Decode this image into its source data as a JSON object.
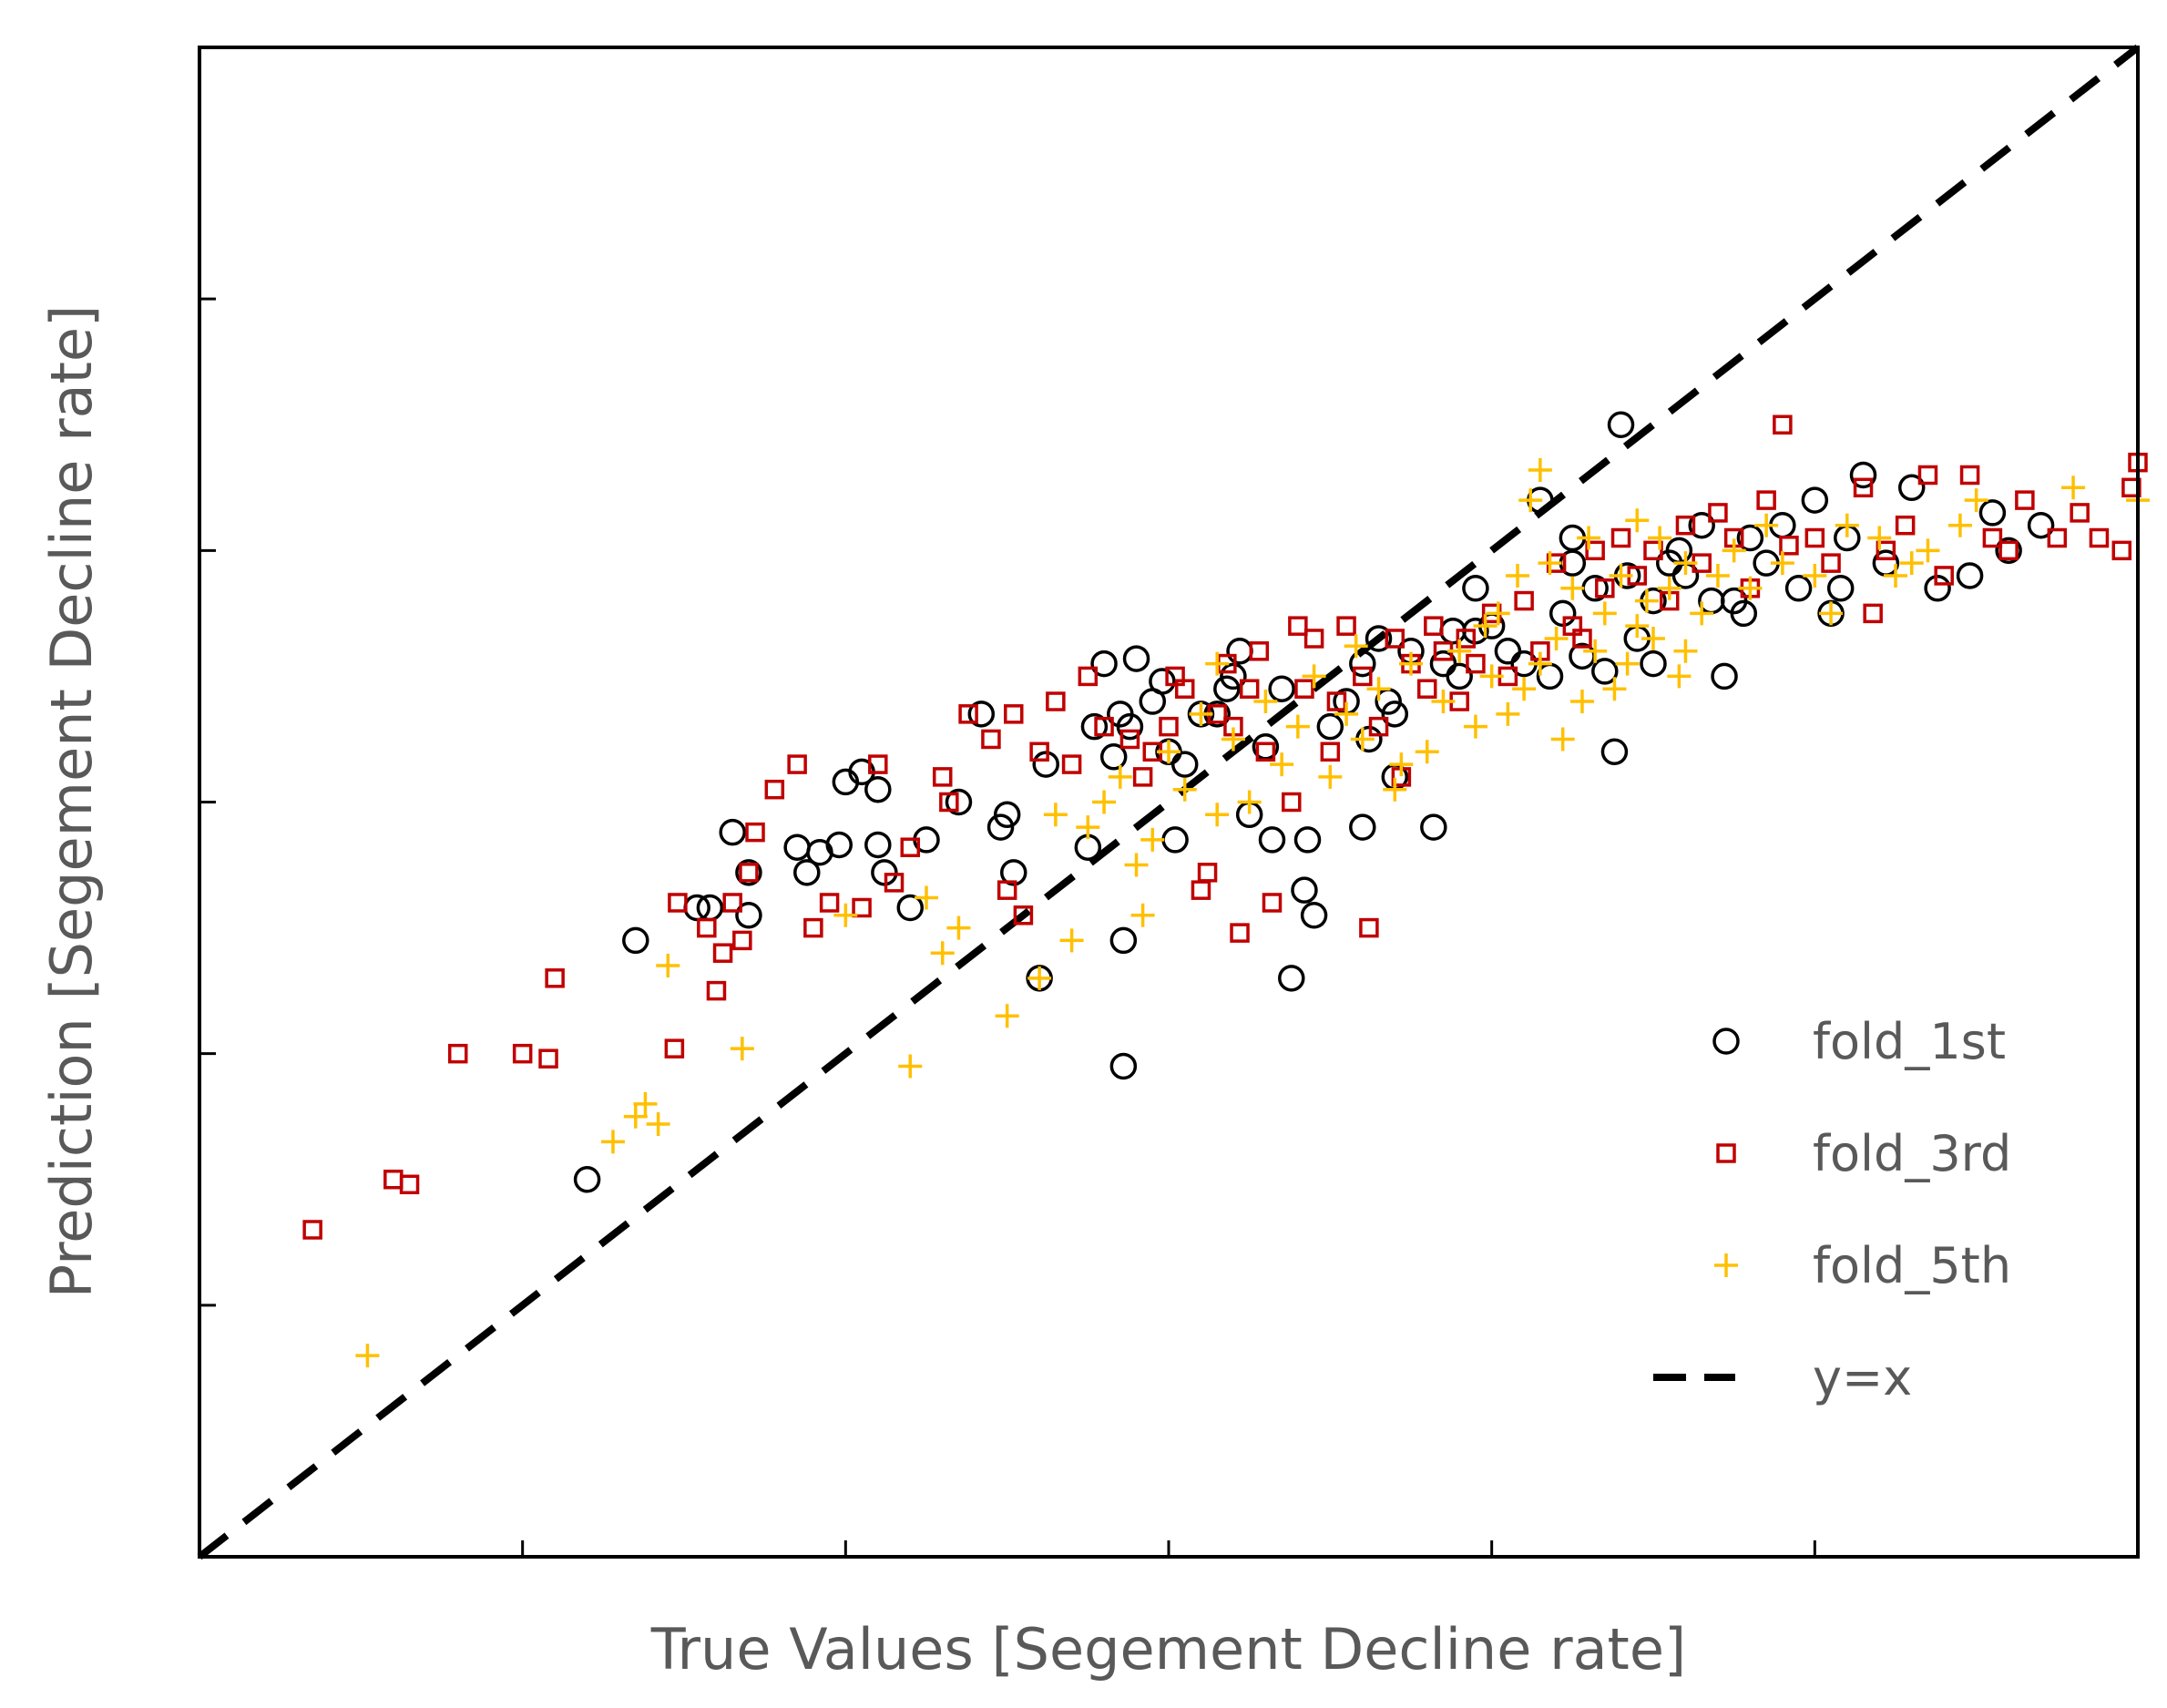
{
  "chart_data": {
    "type": "scatter",
    "xlabel": "True Values [Segement Decline rate]",
    "ylabel": "Prediction [Segement Decline rate]",
    "xlim": [
      0,
      6
    ],
    "ylim": [
      0,
      6
    ],
    "tick_labels_shown": false,
    "grid": false,
    "legend_position": "bottom-right",
    "reference_line": {
      "label": "y=x",
      "style": "dashed",
      "color": "#000000"
    },
    "series": [
      {
        "name": "fold_1st",
        "marker": "circle",
        "color": "#000000",
        "points": [
          [
            1.2,
            1.5
          ],
          [
            1.35,
            2.45
          ],
          [
            1.54,
            2.58
          ],
          [
            1.58,
            2.58
          ],
          [
            1.65,
            2.88
          ],
          [
            1.7,
            2.72
          ],
          [
            1.85,
            2.82
          ],
          [
            1.88,
            2.72
          ],
          [
            1.98,
            2.83
          ],
          [
            2.0,
            3.08
          ],
          [
            2.05,
            3.12
          ],
          [
            2.1,
            3.05
          ],
          [
            2.1,
            2.83
          ],
          [
            2.12,
            2.72
          ],
          [
            2.2,
            2.58
          ],
          [
            2.35,
            3.0
          ],
          [
            2.42,
            3.35
          ],
          [
            2.5,
            2.95
          ],
          [
            2.52,
            2.72
          ],
          [
            2.6,
            2.3
          ],
          [
            2.62,
            3.15
          ],
          [
            2.75,
            2.82
          ],
          [
            2.77,
            3.3
          ],
          [
            2.8,
            3.55
          ],
          [
            2.83,
            3.18
          ],
          [
            2.85,
            3.35
          ],
          [
            2.86,
            1.95
          ],
          [
            2.86,
            2.45
          ],
          [
            2.88,
            3.3
          ],
          [
            2.9,
            3.57
          ],
          [
            2.95,
            3.4
          ],
          [
            3.0,
            3.2
          ],
          [
            3.02,
            2.85
          ],
          [
            3.05,
            3.15
          ],
          [
            3.1,
            3.35
          ],
          [
            3.15,
            3.35
          ],
          [
            3.18,
            3.45
          ],
          [
            3.2,
            3.5
          ],
          [
            3.22,
            3.6
          ],
          [
            3.25,
            2.95
          ],
          [
            3.3,
            3.22
          ],
          [
            3.32,
            2.85
          ],
          [
            3.35,
            3.45
          ],
          [
            3.38,
            2.3
          ],
          [
            3.42,
            2.65
          ],
          [
            3.45,
            2.55
          ],
          [
            3.5,
            3.3
          ],
          [
            3.55,
            3.4
          ],
          [
            3.6,
            3.55
          ],
          [
            3.62,
            3.25
          ],
          [
            3.65,
            3.65
          ],
          [
            3.68,
            3.4
          ],
          [
            3.7,
            3.1
          ],
          [
            3.75,
            3.6
          ],
          [
            3.82,
            2.9
          ],
          [
            3.85,
            3.55
          ],
          [
            3.88,
            3.68
          ],
          [
            3.9,
            3.5
          ],
          [
            3.95,
            3.68
          ],
          [
            4.0,
            3.7
          ],
          [
            4.05,
            3.6
          ],
          [
            4.1,
            3.55
          ],
          [
            4.15,
            4.2
          ],
          [
            4.18,
            3.5
          ],
          [
            4.22,
            3.75
          ],
          [
            4.25,
            3.95
          ],
          [
            4.28,
            3.58
          ],
          [
            4.32,
            3.85
          ],
          [
            4.35,
            3.52
          ],
          [
            4.38,
            3.2
          ],
          [
            4.4,
            4.5
          ],
          [
            4.42,
            3.9
          ],
          [
            4.45,
            3.65
          ],
          [
            4.5,
            3.8
          ],
          [
            4.55,
            3.95
          ],
          [
            4.58,
            4.0
          ],
          [
            4.6,
            3.9
          ],
          [
            4.65,
            4.1
          ],
          [
            4.68,
            3.8
          ],
          [
            4.72,
            3.5
          ],
          [
            4.78,
            3.75
          ],
          [
            4.8,
            4.05
          ],
          [
            4.85,
            3.95
          ],
          [
            4.9,
            4.1
          ],
          [
            4.95,
            3.85
          ],
          [
            5.0,
            4.2
          ],
          [
            5.05,
            3.75
          ],
          [
            5.1,
            4.05
          ],
          [
            5.15,
            4.3
          ],
          [
            5.22,
            3.95
          ],
          [
            5.3,
            4.25
          ],
          [
            5.38,
            3.85
          ],
          [
            5.48,
            3.9
          ],
          [
            5.55,
            4.15
          ],
          [
            5.6,
            4.0
          ],
          [
            5.7,
            4.1
          ],
          [
            1.7,
            2.55
          ],
          [
            1.92,
            2.8
          ],
          [
            2.25,
            2.85
          ],
          [
            2.48,
            2.9
          ],
          [
            2.98,
            3.48
          ],
          [
            3.43,
            2.85
          ],
          [
            3.6,
            2.9
          ],
          [
            3.7,
            3.35
          ],
          [
            3.95,
            3.85
          ],
          [
            4.25,
            4.05
          ],
          [
            4.5,
            3.55
          ],
          [
            4.75,
            3.8
          ],
          [
            5.08,
            3.85
          ]
        ]
      },
      {
        "name": "fold_3rd",
        "marker": "square",
        "color": "#c00000",
        "points": [
          [
            0.35,
            1.3
          ],
          [
            0.6,
            1.5
          ],
          [
            0.65,
            1.48
          ],
          [
            0.8,
            2.0
          ],
          [
            1.0,
            2.0
          ],
          [
            1.08,
            1.98
          ],
          [
            1.1,
            2.3
          ],
          [
            1.47,
            2.02
          ],
          [
            1.48,
            2.6
          ],
          [
            1.57,
            2.5
          ],
          [
            1.6,
            2.25
          ],
          [
            1.62,
            2.4
          ],
          [
            1.65,
            2.6
          ],
          [
            1.68,
            2.45
          ],
          [
            1.7,
            2.72
          ],
          [
            1.72,
            2.88
          ],
          [
            1.78,
            3.05
          ],
          [
            1.85,
            3.15
          ],
          [
            1.9,
            2.5
          ],
          [
            1.95,
            2.6
          ],
          [
            2.05,
            2.58
          ],
          [
            2.1,
            3.15
          ],
          [
            2.15,
            2.68
          ],
          [
            2.2,
            2.82
          ],
          [
            2.3,
            3.1
          ],
          [
            2.32,
            3.0
          ],
          [
            2.38,
            3.35
          ],
          [
            2.45,
            3.25
          ],
          [
            2.5,
            2.65
          ],
          [
            2.52,
            3.35
          ],
          [
            2.55,
            2.55
          ],
          [
            2.6,
            3.2
          ],
          [
            2.65,
            3.4
          ],
          [
            2.7,
            3.15
          ],
          [
            2.75,
            3.5
          ],
          [
            2.8,
            3.3
          ],
          [
            2.88,
            3.25
          ],
          [
            2.92,
            3.1
          ],
          [
            2.95,
            3.2
          ],
          [
            3.0,
            3.3
          ],
          [
            3.02,
            3.5
          ],
          [
            3.05,
            3.45
          ],
          [
            3.1,
            2.65
          ],
          [
            3.12,
            2.72
          ],
          [
            3.15,
            3.35
          ],
          [
            3.18,
            3.55
          ],
          [
            3.2,
            3.3
          ],
          [
            3.22,
            2.48
          ],
          [
            3.25,
            3.45
          ],
          [
            3.28,
            3.6
          ],
          [
            3.3,
            3.2
          ],
          [
            3.32,
            2.6
          ],
          [
            3.38,
            3.0
          ],
          [
            3.4,
            3.7
          ],
          [
            3.42,
            3.45
          ],
          [
            3.45,
            3.65
          ],
          [
            3.5,
            3.2
          ],
          [
            3.52,
            3.4
          ],
          [
            3.55,
            3.7
          ],
          [
            3.6,
            3.5
          ],
          [
            3.62,
            2.5
          ],
          [
            3.65,
            3.3
          ],
          [
            3.7,
            3.65
          ],
          [
            3.72,
            3.1
          ],
          [
            3.75,
            3.55
          ],
          [
            3.8,
            3.45
          ],
          [
            3.82,
            3.7
          ],
          [
            3.85,
            3.6
          ],
          [
            3.9,
            3.4
          ],
          [
            3.92,
            3.65
          ],
          [
            3.95,
            3.55
          ],
          [
            4.0,
            3.75
          ],
          [
            4.05,
            3.5
          ],
          [
            4.1,
            3.8
          ],
          [
            4.15,
            3.6
          ],
          [
            4.2,
            3.95
          ],
          [
            4.25,
            3.7
          ],
          [
            4.28,
            3.65
          ],
          [
            4.32,
            4.0
          ],
          [
            4.35,
            3.85
          ],
          [
            4.4,
            4.05
          ],
          [
            4.45,
            3.9
          ],
          [
            4.5,
            4.0
          ],
          [
            4.55,
            3.8
          ],
          [
            4.6,
            4.1
          ],
          [
            4.65,
            3.95
          ],
          [
            4.7,
            4.15
          ],
          [
            4.75,
            4.05
          ],
          [
            4.8,
            3.85
          ],
          [
            4.85,
            4.2
          ],
          [
            4.9,
            4.5
          ],
          [
            4.92,
            4.02
          ],
          [
            5.0,
            4.05
          ],
          [
            5.05,
            3.95
          ],
          [
            5.15,
            4.25
          ],
          [
            5.18,
            3.75
          ],
          [
            5.22,
            4.0
          ],
          [
            5.28,
            4.1
          ],
          [
            5.35,
            4.3
          ],
          [
            5.4,
            3.9
          ],
          [
            5.48,
            4.3
          ],
          [
            5.55,
            4.05
          ],
          [
            5.6,
            4.0
          ],
          [
            5.65,
            4.2
          ],
          [
            5.75,
            4.05
          ],
          [
            5.82,
            4.15
          ],
          [
            5.95,
            4.0
          ],
          [
            5.98,
            4.25
          ],
          [
            6.0,
            4.35
          ],
          [
            5.88,
            4.05
          ]
        ]
      },
      {
        "name": "fold_5th",
        "marker": "plus",
        "color": "#ffc000",
        "points": [
          [
            0.52,
            0.8
          ],
          [
            1.28,
            1.65
          ],
          [
            1.35,
            1.75
          ],
          [
            1.38,
            1.8
          ],
          [
            1.42,
            1.72
          ],
          [
            1.45,
            2.35
          ],
          [
            1.68,
            2.02
          ],
          [
            2.0,
            2.55
          ],
          [
            2.2,
            1.95
          ],
          [
            2.25,
            2.62
          ],
          [
            2.35,
            2.5
          ],
          [
            2.5,
            2.15
          ],
          [
            2.6,
            2.3
          ],
          [
            2.7,
            2.45
          ],
          [
            2.75,
            2.9
          ],
          [
            2.8,
            3.0
          ],
          [
            2.85,
            3.1
          ],
          [
            2.9,
            2.75
          ],
          [
            2.92,
            2.55
          ],
          [
            2.95,
            2.85
          ],
          [
            3.0,
            3.2
          ],
          [
            3.05,
            3.05
          ],
          [
            3.1,
            3.35
          ],
          [
            3.15,
            2.95
          ],
          [
            3.2,
            3.25
          ],
          [
            3.25,
            3.0
          ],
          [
            3.3,
            3.4
          ],
          [
            3.35,
            3.15
          ],
          [
            3.4,
            3.3
          ],
          [
            3.45,
            3.5
          ],
          [
            3.5,
            3.1
          ],
          [
            3.55,
            3.35
          ],
          [
            3.6,
            3.25
          ],
          [
            3.65,
            3.45
          ],
          [
            3.7,
            3.05
          ],
          [
            3.75,
            3.55
          ],
          [
            3.8,
            3.2
          ],
          [
            3.85,
            3.4
          ],
          [
            3.9,
            3.6
          ],
          [
            3.95,
            3.3
          ],
          [
            4.0,
            3.5
          ],
          [
            4.02,
            3.75
          ],
          [
            4.05,
            3.35
          ],
          [
            4.08,
            3.9
          ],
          [
            4.1,
            3.45
          ],
          [
            4.12,
            4.2
          ],
          [
            4.15,
            3.55
          ],
          [
            4.18,
            3.95
          ],
          [
            4.2,
            3.65
          ],
          [
            4.22,
            3.25
          ],
          [
            4.25,
            3.85
          ],
          [
            4.28,
            3.4
          ],
          [
            4.3,
            4.05
          ],
          [
            4.32,
            3.6
          ],
          [
            4.35,
            3.75
          ],
          [
            4.38,
            3.45
          ],
          [
            4.4,
            3.9
          ],
          [
            4.42,
            3.55
          ],
          [
            4.45,
            3.7
          ],
          [
            4.48,
            3.8
          ],
          [
            4.5,
            3.65
          ],
          [
            4.52,
            4.05
          ],
          [
            4.55,
            3.85
          ],
          [
            4.58,
            3.5
          ],
          [
            4.6,
            3.95
          ],
          [
            4.65,
            3.75
          ],
          [
            4.7,
            3.9
          ],
          [
            4.75,
            4.0
          ],
          [
            4.8,
            3.85
          ],
          [
            4.85,
            4.1
          ],
          [
            4.9,
            3.95
          ],
          [
            5.0,
            3.9
          ],
          [
            5.05,
            3.75
          ],
          [
            5.1,
            4.1
          ],
          [
            5.2,
            4.05
          ],
          [
            5.25,
            3.9
          ],
          [
            5.3,
            3.95
          ],
          [
            5.35,
            4.0
          ],
          [
            5.45,
            4.1
          ],
          [
            5.5,
            4.2
          ],
          [
            6.0,
            4.2
          ],
          [
            5.8,
            4.25
          ],
          [
            2.3,
            2.4
          ],
          [
            2.65,
            2.95
          ],
          [
            3.15,
            3.55
          ],
          [
            3.58,
            3.62
          ],
          [
            3.72,
            3.15
          ],
          [
            3.98,
            3.7
          ],
          [
            4.15,
            4.32
          ],
          [
            4.45,
            4.12
          ],
          [
            4.6,
            3.6
          ]
        ]
      }
    ]
  },
  "legend": {
    "items": [
      {
        "label": "fold_1st",
        "marker": "circle",
        "color": "#000000"
      },
      {
        "label": "fold_3rd",
        "marker": "square",
        "color": "#c00000"
      },
      {
        "label": "fold_5th",
        "marker": "plus",
        "color": "#ffc000"
      },
      {
        "label": "y=x",
        "marker": "dashed-line",
        "color": "#000000"
      }
    ]
  }
}
